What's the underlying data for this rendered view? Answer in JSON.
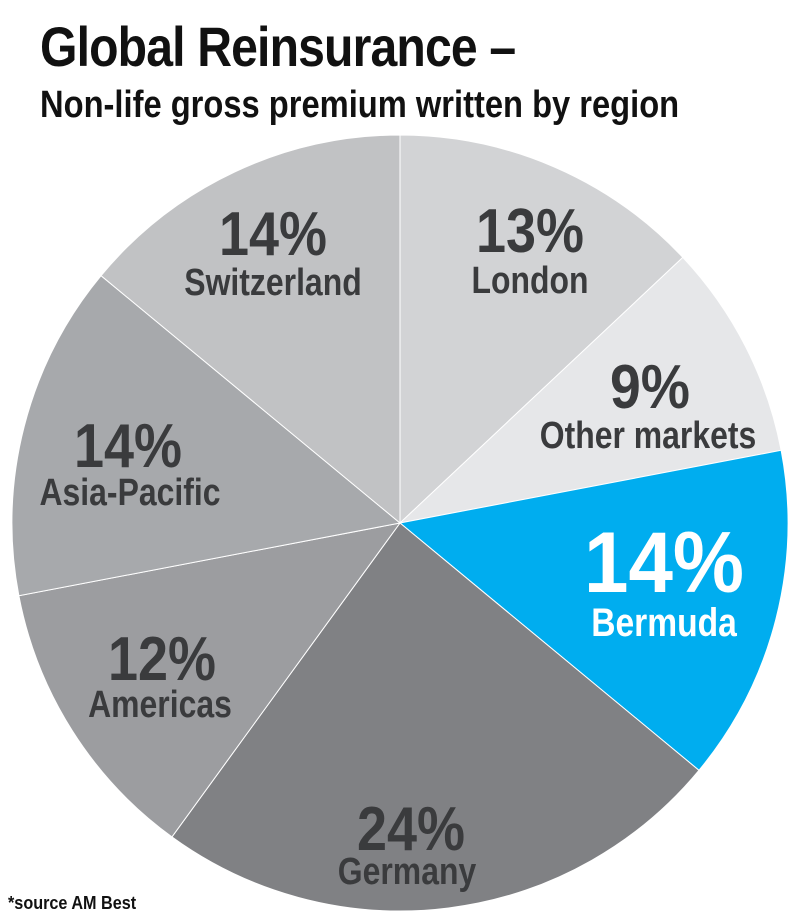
{
  "chart_data": {
    "type": "pie",
    "title": "Global Reinsurance –",
    "subtitle": "Non-life gross premium written by region",
    "source": "*source AM Best",
    "slices": [
      {
        "label": "London",
        "pct_label": "13%",
        "value": 13,
        "color": "#d2d3d5",
        "text_color": "#3a3b3d"
      },
      {
        "label": "Other markets",
        "pct_label": "9%",
        "value": 9,
        "color": "#e6e7e9",
        "text_color": "#3a3b3d"
      },
      {
        "label": "Bermuda",
        "pct_label": "14%",
        "value": 14,
        "color": "#00adef",
        "text_color": "#ffffff"
      },
      {
        "label": "Germany",
        "pct_label": "24%",
        "value": 24,
        "color": "#808184",
        "text_color": "#3a3b3d"
      },
      {
        "label": "Americas",
        "pct_label": "12%",
        "value": 12,
        "color": "#9c9da0",
        "text_color": "#3a3b3d"
      },
      {
        "label": "Asia-Pacific",
        "pct_label": "14%",
        "value": 14,
        "color": "#a7a9ac",
        "text_color": "#3a3b3d"
      },
      {
        "label": "Switzerland",
        "pct_label": "14%",
        "value": 14,
        "color": "#c1c2c4",
        "text_color": "#3a3b3d"
      }
    ]
  }
}
